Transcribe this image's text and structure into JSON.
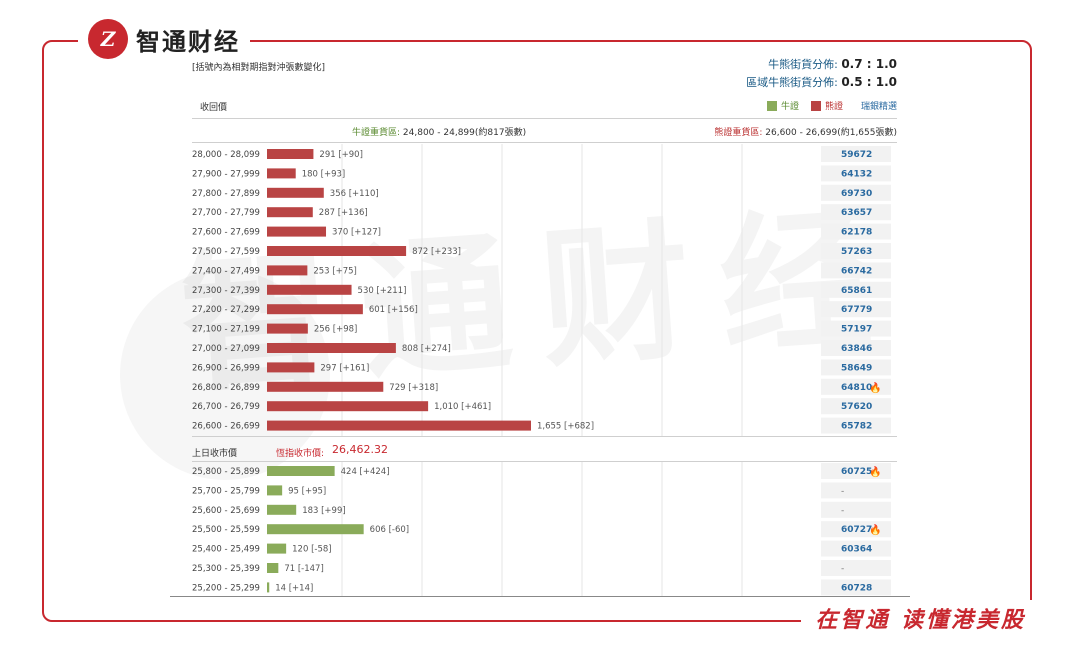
{
  "brand": {
    "logo_text": "Z",
    "name": "智通财经",
    "slogan": "在智通 读懂港美股",
    "watermark": "智通财经"
  },
  "panel": {
    "note": "[括號內為相對期指對沖張數變化]",
    "ratio1": {
      "label": "牛熊街貨分佈:",
      "value": "0.7 : 1.0"
    },
    "ratio2": {
      "label": "區域牛熊街貨分佈:",
      "value": "0.5 : 1.0"
    },
    "row_title": "收回價",
    "legend": {
      "bull": "牛證",
      "bear": "熊證",
      "link": "瑞銀精選"
    },
    "zone_bull": {
      "label": "牛證重貨區:",
      "value": "24,800 - 24,899(約817張數)"
    },
    "zone_bear": {
      "label": "熊證重貨區:",
      "value": "26,600 - 26,699(約1,655張數)"
    },
    "close_label": "上日收市價",
    "close_val_label": "恆指收市價:",
    "close_value": "26,462.32"
  },
  "colors": {
    "bull": "#8aab5a",
    "bear": "#b94444",
    "code": "#2a6aa0",
    "accent": "#c8282f"
  },
  "chart_data": {
    "type": "bar",
    "bear_rows": [
      {
        "range": "28,000 - 28,099",
        "value": 291,
        "label": "291 [+90]",
        "code": "59672",
        "hot": false
      },
      {
        "range": "27,900 - 27,999",
        "value": 180,
        "label": "180 [+93]",
        "code": "64132",
        "hot": false
      },
      {
        "range": "27,800 - 27,899",
        "value": 356,
        "label": "356 [+110]",
        "code": "69730",
        "hot": false
      },
      {
        "range": "27,700 - 27,799",
        "value": 287,
        "label": "287 [+136]",
        "code": "63657",
        "hot": false
      },
      {
        "range": "27,600 - 27,699",
        "value": 370,
        "label": "370 [+127]",
        "code": "62178",
        "hot": false
      },
      {
        "range": "27,500 - 27,599",
        "value": 872,
        "label": "872 [+233]",
        "code": "57263",
        "hot": false
      },
      {
        "range": "27,400 - 27,499",
        "value": 253,
        "label": "253 [+75]",
        "code": "66742",
        "hot": false
      },
      {
        "range": "27,300 - 27,399",
        "value": 530,
        "label": "530 [+211]",
        "code": "65861",
        "hot": false
      },
      {
        "range": "27,200 - 27,299",
        "value": 601,
        "label": "601 [+156]",
        "code": "67779",
        "hot": false
      },
      {
        "range": "27,100 - 27,199",
        "value": 256,
        "label": "256 [+98]",
        "code": "57197",
        "hot": false
      },
      {
        "range": "27,000 - 27,099",
        "value": 808,
        "label": "808 [+274]",
        "code": "63846",
        "hot": false
      },
      {
        "range": "26,900 - 26,999",
        "value": 297,
        "label": "297 [+161]",
        "code": "58649",
        "hot": false
      },
      {
        "range": "26,800 - 26,899",
        "value": 729,
        "label": "729 [+318]",
        "code": "64810",
        "hot": true
      },
      {
        "range": "26,700 - 26,799",
        "value": 1010,
        "label": "1,010 [+461]",
        "code": "57620",
        "hot": false
      },
      {
        "range": "26,600 - 26,699",
        "value": 1655,
        "label": "1,655 [+682]",
        "code": "65782",
        "hot": false
      }
    ],
    "bull_rows": [
      {
        "range": "25,800 - 25,899",
        "value": 424,
        "label": "424 [+424]",
        "code": "60725",
        "hot": true
      },
      {
        "range": "25,700 - 25,799",
        "value": 95,
        "label": "95 [+95]",
        "code": "-",
        "hot": false
      },
      {
        "range": "25,600 - 25,699",
        "value": 183,
        "label": "183 [+99]",
        "code": "-",
        "hot": false
      },
      {
        "range": "25,500 - 25,599",
        "value": 606,
        "label": "606 [-60]",
        "code": "60727",
        "hot": true
      },
      {
        "range": "25,400 - 25,499",
        "value": 120,
        "label": "120 [-58]",
        "code": "60364",
        "hot": false
      },
      {
        "range": "25,300 - 25,399",
        "value": 71,
        "label": "71 [-147]",
        "code": "-",
        "hot": false
      },
      {
        "range": "25,200 - 25,299",
        "value": 14,
        "label": "14 [+14]",
        "code": "60728",
        "hot": false
      }
    ],
    "xmax": 1655
  }
}
